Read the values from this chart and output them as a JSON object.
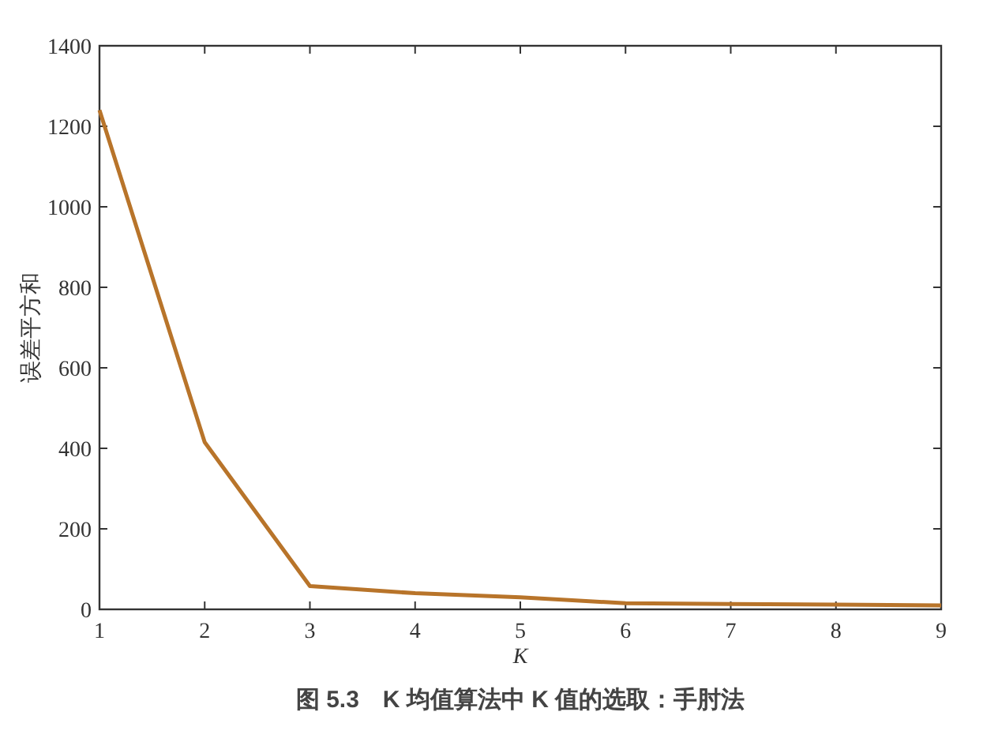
{
  "chart_data": {
    "type": "line",
    "title": "图 5.3　K 均值算法中 K 值的选取：手肘法",
    "xlabel": "K",
    "ylabel": "误差平方和",
    "x": [
      1,
      2,
      3,
      4,
      5,
      6,
      7,
      8,
      9
    ],
    "series": [
      {
        "color": "#b8742a",
        "values": [
          1240,
          415,
          58,
          40,
          30,
          15,
          13,
          12,
          10
        ]
      }
    ],
    "xlim": [
      1,
      9
    ],
    "xticks": [
      1,
      2,
      3,
      4,
      5,
      6,
      7,
      8,
      9
    ],
    "ylim": [
      0,
      1400
    ],
    "yticks": [
      0,
      200,
      400,
      600,
      800,
      1000,
      1200,
      1400
    ],
    "grid": false,
    "marker": "none",
    "line_style": "solid"
  }
}
